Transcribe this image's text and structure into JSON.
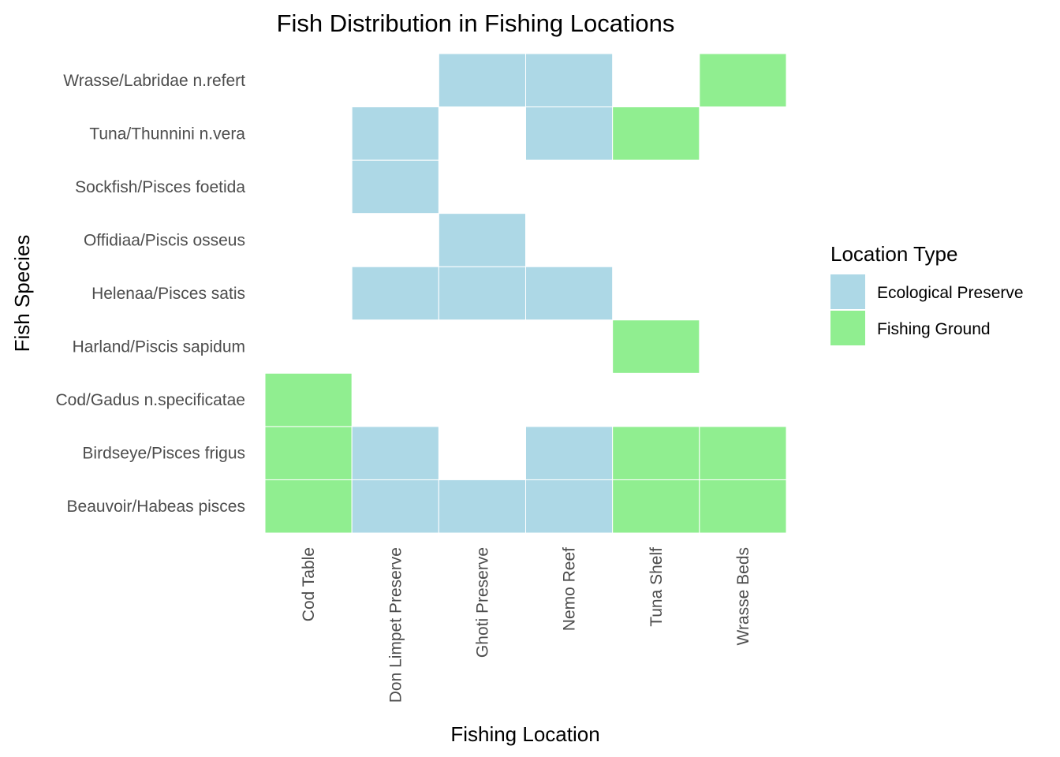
{
  "chart_data": {
    "type": "heatmap",
    "title": "Fish Distribution in Fishing Locations",
    "xlabel": "Fishing Location",
    "ylabel": "Fish Species",
    "x_categories": [
      "Cod Table",
      "Don Limpet Preserve",
      "Ghoti Preserve",
      "Nemo Reef",
      "Tuna Shelf",
      "Wrasse Beds"
    ],
    "y_categories": [
      "Beauvoir/Habeas pisces",
      "Birdseye/Pisces frigus",
      "Cod/Gadus n.specificatae",
      "Harland/Piscis sapidum",
      "Helenaa/Pisces satis",
      "Offidiaa/Piscis osseus",
      "Sockfish/Pisces foetida",
      "Tuna/Thunnini n.vera",
      "Wrasse/Labridae n.refert"
    ],
    "legend": {
      "title": "Location Type",
      "placement": "right",
      "entries": [
        {
          "label": "Ecological Preserve",
          "color": "#add8e6"
        },
        {
          "label": "Fishing Ground",
          "color": "#90ee90"
        }
      ]
    },
    "cells": [
      {
        "x": "Cod Table",
        "y": "Beauvoir/Habeas pisces",
        "value": "Fishing Ground"
      },
      {
        "x": "Don Limpet Preserve",
        "y": "Beauvoir/Habeas pisces",
        "value": "Ecological Preserve"
      },
      {
        "x": "Ghoti Preserve",
        "y": "Beauvoir/Habeas pisces",
        "value": "Ecological Preserve"
      },
      {
        "x": "Nemo Reef",
        "y": "Beauvoir/Habeas pisces",
        "value": "Ecological Preserve"
      },
      {
        "x": "Tuna Shelf",
        "y": "Beauvoir/Habeas pisces",
        "value": "Fishing Ground"
      },
      {
        "x": "Wrasse Beds",
        "y": "Beauvoir/Habeas pisces",
        "value": "Fishing Ground"
      },
      {
        "x": "Cod Table",
        "y": "Birdseye/Pisces frigus",
        "value": "Fishing Ground"
      },
      {
        "x": "Don Limpet Preserve",
        "y": "Birdseye/Pisces frigus",
        "value": "Ecological Preserve"
      },
      {
        "x": "Nemo Reef",
        "y": "Birdseye/Pisces frigus",
        "value": "Ecological Preserve"
      },
      {
        "x": "Tuna Shelf",
        "y": "Birdseye/Pisces frigus",
        "value": "Fishing Ground"
      },
      {
        "x": "Wrasse Beds",
        "y": "Birdseye/Pisces frigus",
        "value": "Fishing Ground"
      },
      {
        "x": "Cod Table",
        "y": "Cod/Gadus n.specificatae",
        "value": "Fishing Ground"
      },
      {
        "x": "Tuna Shelf",
        "y": "Harland/Piscis sapidum",
        "value": "Fishing Ground"
      },
      {
        "x": "Don Limpet Preserve",
        "y": "Helenaa/Pisces satis",
        "value": "Ecological Preserve"
      },
      {
        "x": "Ghoti Preserve",
        "y": "Helenaa/Pisces satis",
        "value": "Ecological Preserve"
      },
      {
        "x": "Nemo Reef",
        "y": "Helenaa/Pisces satis",
        "value": "Ecological Preserve"
      },
      {
        "x": "Ghoti Preserve",
        "y": "Offidiaa/Piscis osseus",
        "value": "Ecological Preserve"
      },
      {
        "x": "Don Limpet Preserve",
        "y": "Sockfish/Pisces foetida",
        "value": "Ecological Preserve"
      },
      {
        "x": "Don Limpet Preserve",
        "y": "Tuna/Thunnini n.vera",
        "value": "Ecological Preserve"
      },
      {
        "x": "Nemo Reef",
        "y": "Tuna/Thunnini n.vera",
        "value": "Ecological Preserve"
      },
      {
        "x": "Tuna Shelf",
        "y": "Tuna/Thunnini n.vera",
        "value": "Fishing Ground"
      },
      {
        "x": "Ghoti Preserve",
        "y": "Wrasse/Labridae n.refert",
        "value": "Ecological Preserve"
      },
      {
        "x": "Nemo Reef",
        "y": "Wrasse/Labridae n.refert",
        "value": "Ecological Preserve"
      },
      {
        "x": "Wrasse Beds",
        "y": "Wrasse/Labridae n.refert",
        "value": "Fishing Ground"
      }
    ]
  }
}
